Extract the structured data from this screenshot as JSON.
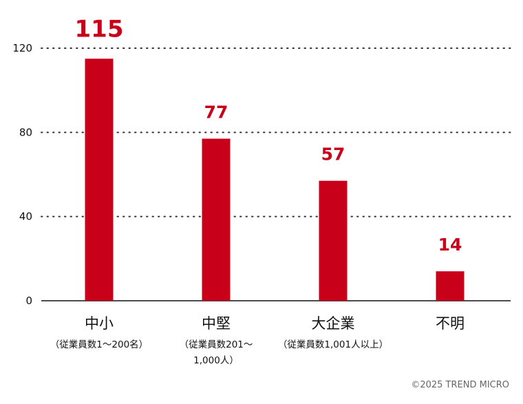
{
  "chart_data": {
    "type": "bar",
    "categories": [
      "中小",
      "中堅",
      "大企業",
      "不明"
    ],
    "category_sublabels": [
      [
        "（従業員数1～200名）"
      ],
      [
        "（従業員数201～",
        "1,000人）"
      ],
      [
        "（従業員数1,001人以上）"
      ],
      []
    ],
    "values": [
      115,
      77,
      57,
      14
    ],
    "ylim": [
      0,
      120
    ],
    "yticks": [
      0,
      40,
      80,
      120
    ],
    "grid": true,
    "bar_color": "#c8001a",
    "label_color": "#c8001a",
    "title": "",
    "xlabel": "",
    "ylabel": ""
  },
  "copyright": "©2025 TREND MICRO"
}
